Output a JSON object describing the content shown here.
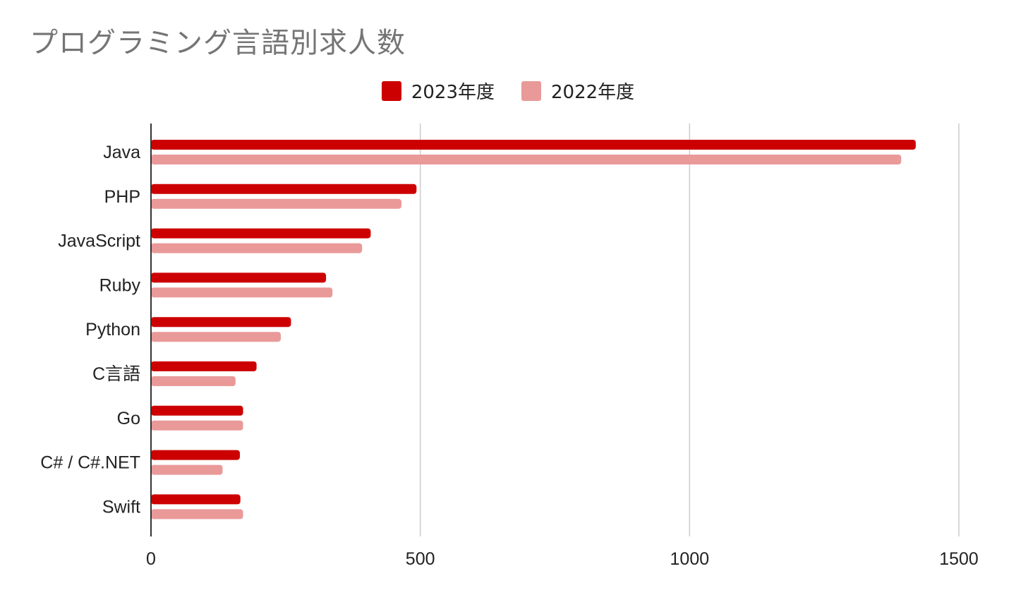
{
  "title": "プログラミング言語別求人数",
  "colors": {
    "series_2023": "#cc0000",
    "series_2022": "#ea9999",
    "grid": "#cccccc",
    "axis": "#333333",
    "tick_label": "#222222"
  },
  "chart_data": {
    "type": "bar",
    "orientation": "horizontal",
    "title": "プログラミング言語別求人数",
    "xlabel": "",
    "ylabel": "",
    "categories": [
      "Java",
      "PHP",
      "JavaScript",
      "Ruby",
      "Python",
      "C言語",
      "Go",
      "C# / C#.NET",
      "Swift"
    ],
    "series": [
      {
        "name": "2023年度",
        "values": [
          1420,
          493,
          408,
          325,
          260,
          196,
          171,
          165,
          166
        ]
      },
      {
        "name": "2022年度",
        "values": [
          1393,
          465,
          392,
          337,
          241,
          157,
          171,
          133,
          171
        ]
      }
    ],
    "xlim": [
      0,
      1500
    ],
    "xticks": [
      "0",
      "500",
      "1000",
      "1500"
    ],
    "grid": true,
    "legend_position": "top"
  }
}
